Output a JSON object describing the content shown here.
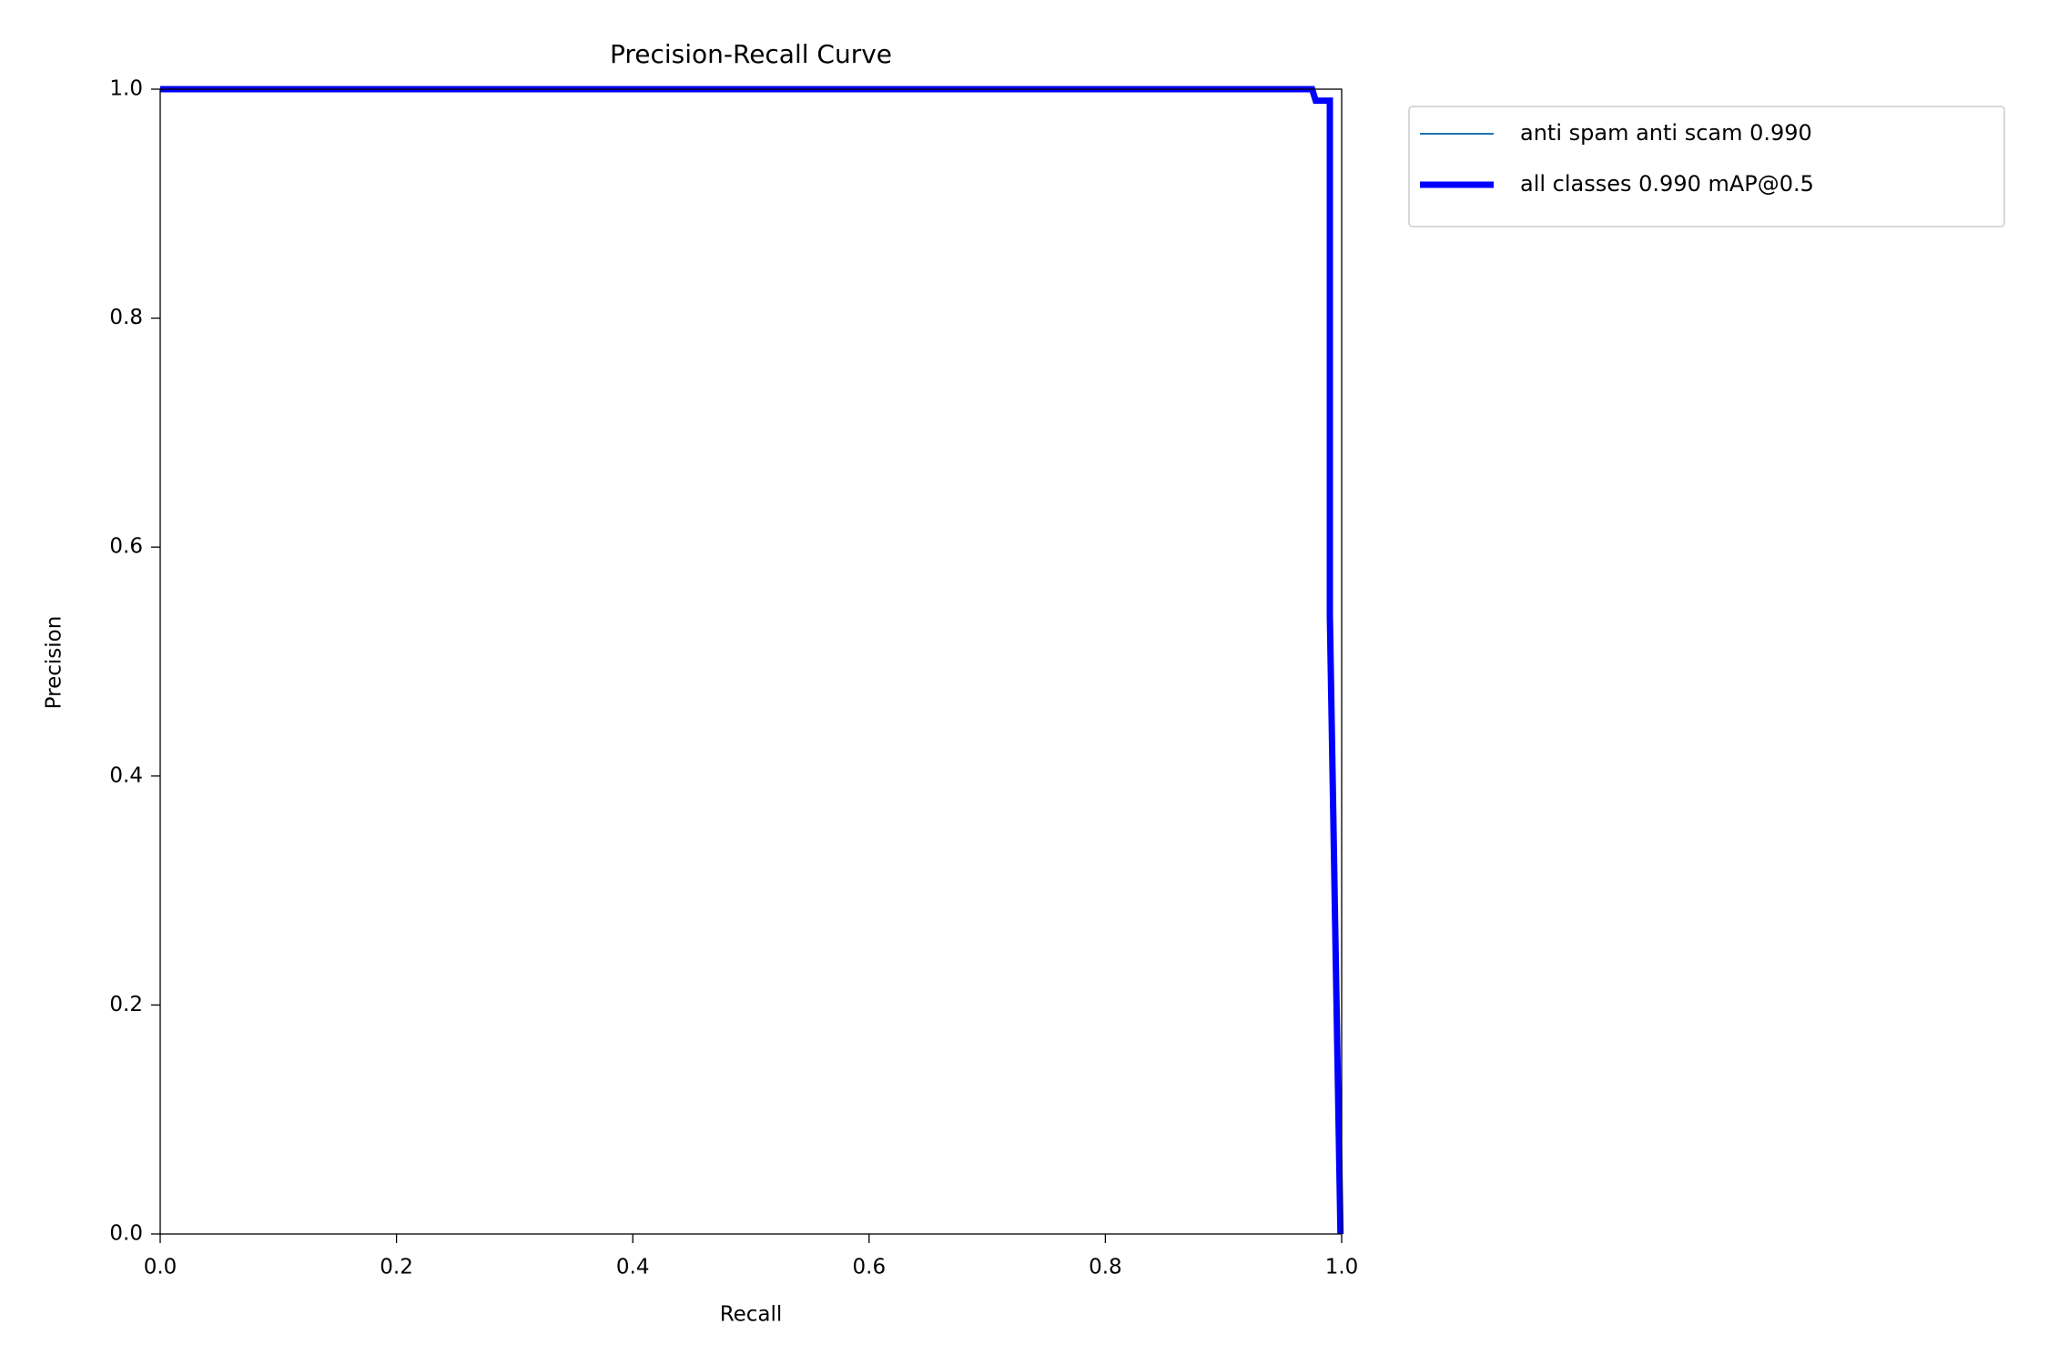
{
  "chart_data": {
    "type": "line",
    "title": "Precision-Recall Curve",
    "x_label": "Recall",
    "y_label": "Precision",
    "x": [
      0,
      0.975,
      0.978,
      0.99,
      0.99,
      0.999
    ],
    "series": [
      {
        "name": "anti spam anti scam 0.990",
        "color": "#1f77b4",
        "values": [
          1,
          1,
          0.99,
          0.99,
          0.54,
          0
        ]
      },
      {
        "name": "all classes 0.990 mAP@0.5",
        "color": "#0000ff",
        "values": [
          1,
          1,
          0.99,
          0.99,
          0.54,
          0
        ]
      }
    ],
    "xlim": [
      0,
      1
    ],
    "ylim": [
      0,
      1
    ],
    "xticks": [
      {
        "value": 0,
        "label": "0.0"
      },
      0.2,
      0.4,
      0.6,
      0.8,
      {
        "value": 1,
        "label": "1.0"
      }
    ],
    "yticks": [
      {
        "value": 0,
        "label": "0.0"
      },
      0.2,
      0.4,
      0.6,
      0.8,
      {
        "value": 1,
        "label": "1.0"
      }
    ],
    "grid": false,
    "legend": "outside-upper-right"
  }
}
